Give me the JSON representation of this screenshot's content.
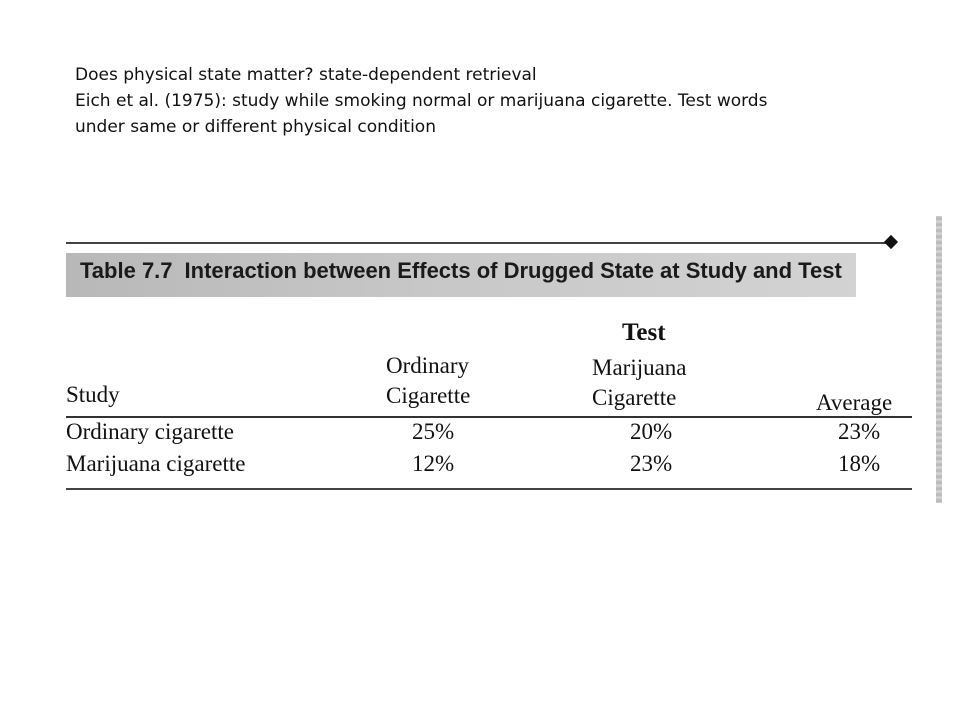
{
  "intro": {
    "line1": "Does physical state matter?  state-dependent retrieval",
    "line2": "Eich et al. (1975):  study while smoking normal or marijuana cigarette. Test words",
    "line3": "under same or different physical condition"
  },
  "table": {
    "number": "Table 7.7",
    "title": "Interaction between Effects of Drugged State at Study and Test",
    "group_header": "Test",
    "row_header": "Study",
    "columns": [
      {
        "line1": "Ordinary",
        "line2": "Cigarette"
      },
      {
        "line1": "Marijuana",
        "line2": "Cigarette"
      },
      {
        "line1": "",
        "line2": "Average"
      }
    ],
    "rows": [
      {
        "label": "Ordinary cigarette",
        "values": [
          "25%",
          "20%",
          "23%"
        ]
      },
      {
        "label": "Marijuana cigarette",
        "values": [
          "12%",
          "23%",
          "18%"
        ]
      }
    ]
  }
}
